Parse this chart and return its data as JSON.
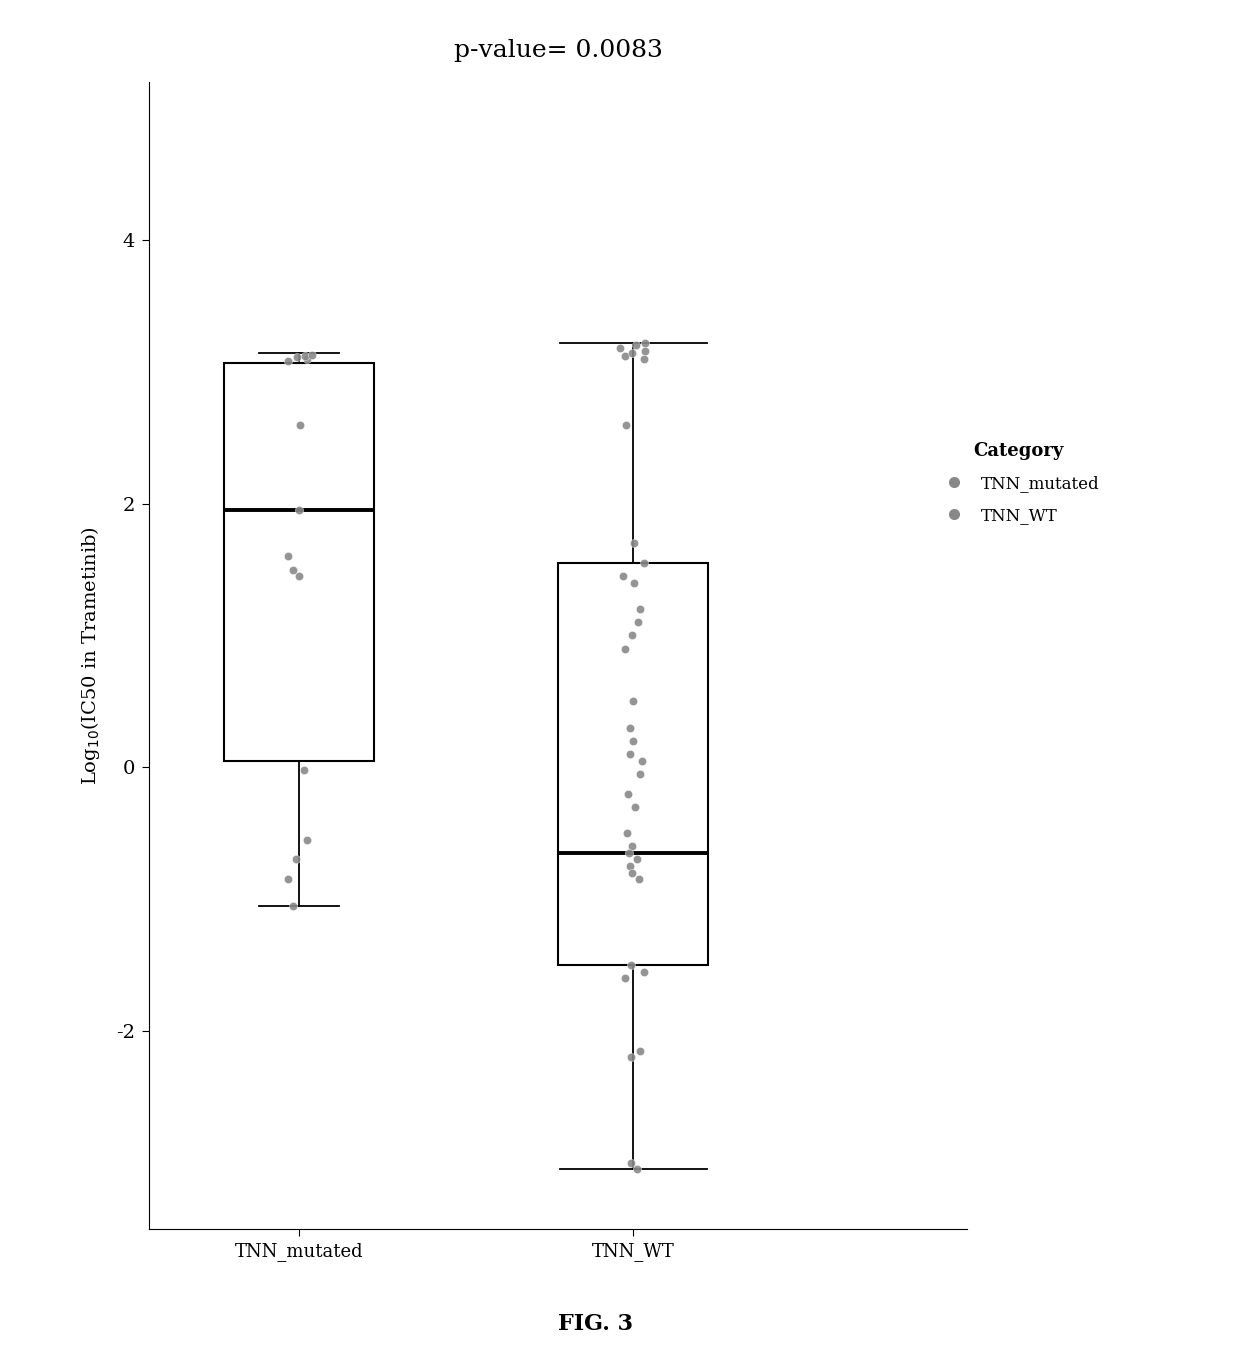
{
  "title": "p-value= 0.0083",
  "ylabel": "Log$_{10}$(IC50 in Trametinib)",
  "xlabel_fig": "FIG. 3",
  "categories": [
    "TNN_mutated",
    "TNN_WT"
  ],
  "background_color": "#ffffff",
  "title_fontsize": 18,
  "ylabel_fontsize": 14,
  "xlabel_fontsize": 16,
  "yticks": [
    -2,
    0,
    2,
    4
  ],
  "ylim": [
    -3.5,
    5.2
  ],
  "legend_title": "Category",
  "legend_labels": [
    "TNN_mutated",
    "TNN_WT"
  ],
  "dot_color": "#888888",
  "tnn_mutated_q1": 0.05,
  "tnn_mutated_median": 1.95,
  "tnn_mutated_q3": 3.07,
  "tnn_mutated_whisker_low": -1.05,
  "tnn_mutated_whisker_high": 3.14,
  "tnn_mutated_dots": [
    3.08,
    3.1,
    3.11,
    3.12,
    3.13,
    2.6,
    1.95,
    1.6,
    1.5,
    1.45,
    -0.02,
    -0.55,
    -0.7,
    -0.85,
    -1.05
  ],
  "tnn_wt_q1": -1.5,
  "tnn_wt_median": -0.65,
  "tnn_wt_q3": 1.55,
  "tnn_wt_whisker_low": -3.05,
  "tnn_wt_whisker_high": 3.22,
  "tnn_wt_dots": [
    3.1,
    3.12,
    3.14,
    3.16,
    3.18,
    3.2,
    3.22,
    2.6,
    1.7,
    1.55,
    1.45,
    1.4,
    1.2,
    1.1,
    1.0,
    0.9,
    0.5,
    0.3,
    0.2,
    0.1,
    0.05,
    -0.05,
    -0.2,
    -0.3,
    -0.5,
    -0.6,
    -0.65,
    -0.7,
    -0.75,
    -0.8,
    -0.85,
    -1.5,
    -1.55,
    -1.6,
    -2.15,
    -2.2,
    -3.0,
    -3.05
  ]
}
